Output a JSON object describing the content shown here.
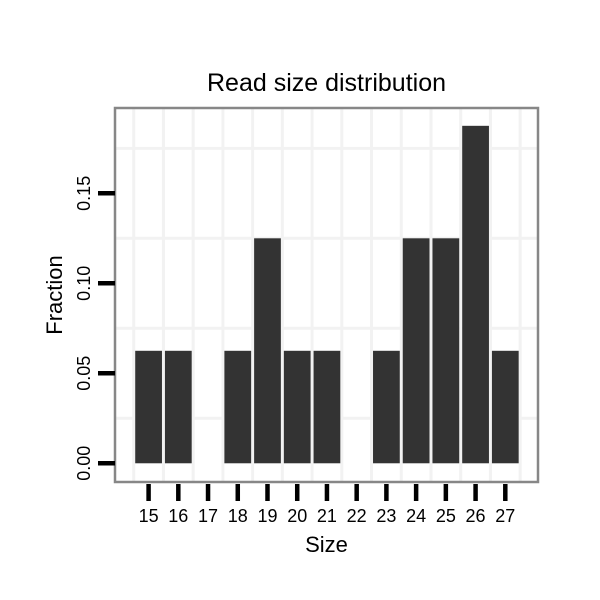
{
  "chart_data": {
    "type": "bar",
    "title": "Read size distribution",
    "xlabel": "Size",
    "ylabel": "Fraction",
    "categories": [
      15,
      16,
      17,
      18,
      19,
      20,
      21,
      22,
      23,
      24,
      25,
      26,
      27
    ],
    "values": [
      0.0625,
      0.0625,
      0,
      0.0625,
      0.125,
      0.0625,
      0.0625,
      0,
      0.0625,
      0.125,
      0.125,
      0.1875,
      0.0625
    ],
    "x_tick_labels": [
      "15",
      "16",
      "17",
      "18",
      "19",
      "20",
      "21",
      "22",
      "23",
      "24",
      "25",
      "26",
      "27"
    ],
    "y_ticks": [
      0,
      0.05,
      0.1,
      0.15
    ],
    "y_tick_labels": [
      "0.00",
      "0.05",
      "0.10",
      "0.15"
    ],
    "xlim": [
      13.87,
      28.1
    ],
    "ylim": [
      -0.0104,
      0.1974
    ],
    "bar_width": 0.9,
    "x_minor_gridlines": [
      14.5,
      15.5,
      16.5,
      17.5,
      18.5,
      19.5,
      20.5,
      21.5,
      22.5,
      23.5,
      24.5,
      25.5,
      26.5,
      27.5
    ],
    "y_minor_gridlines": [
      0.025,
      0.075,
      0.125,
      0.175
    ],
    "grid": "minor-only",
    "legend": "none",
    "colors": {
      "bar": "#333333",
      "grid": "#f2f2f2",
      "panel_border": "#878787",
      "background": "#ffffff",
      "tick": "#000000",
      "text": "#000000"
    }
  }
}
